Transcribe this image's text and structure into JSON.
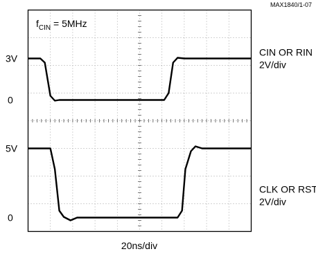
{
  "chart_data": {
    "type": "line",
    "figure_id": "MAX1840/1-07",
    "annotation": {
      "f": "f",
      "sub": "CIN",
      "rest": " = 5MHz"
    },
    "xlabel": "20ns/div",
    "grid": true,
    "x_divisions": 10,
    "y_divisions": 8,
    "x_unit": "ns",
    "ns_per_div": 20,
    "traces": [
      {
        "name": "CIN OR RIN",
        "scale": "2V/div",
        "level_labels": [
          "3V",
          "0"
        ],
        "high_v": 3,
        "low_v": 0,
        "zero_div": 4.75,
        "points_ns": [
          [
            0,
            3
          ],
          [
            11,
            3
          ],
          [
            15,
            2.7
          ],
          [
            20,
            0.3
          ],
          [
            24,
            -0.05
          ],
          [
            28,
            0
          ],
          [
            122,
            0
          ],
          [
            126,
            0.5
          ],
          [
            130,
            2.7
          ],
          [
            134,
            3.05
          ],
          [
            140,
            3
          ],
          [
            200,
            3
          ]
        ]
      },
      {
        "name": "CLK OR RST",
        "scale": "2V/div",
        "level_labels": [
          "5V",
          "0"
        ],
        "high_v": 5,
        "low_v": 0,
        "zero_div": 0.5,
        "points_ns": [
          [
            0,
            5
          ],
          [
            20,
            5
          ],
          [
            24,
            3.5
          ],
          [
            28,
            0.5
          ],
          [
            32,
            0.05
          ],
          [
            38,
            -0.2
          ],
          [
            44,
            0
          ],
          [
            134,
            0
          ],
          [
            138,
            0.5
          ],
          [
            141,
            3.5
          ],
          [
            146,
            4.8
          ],
          [
            150,
            5.15
          ],
          [
            156,
            5
          ],
          [
            200,
            5
          ]
        ]
      }
    ]
  }
}
